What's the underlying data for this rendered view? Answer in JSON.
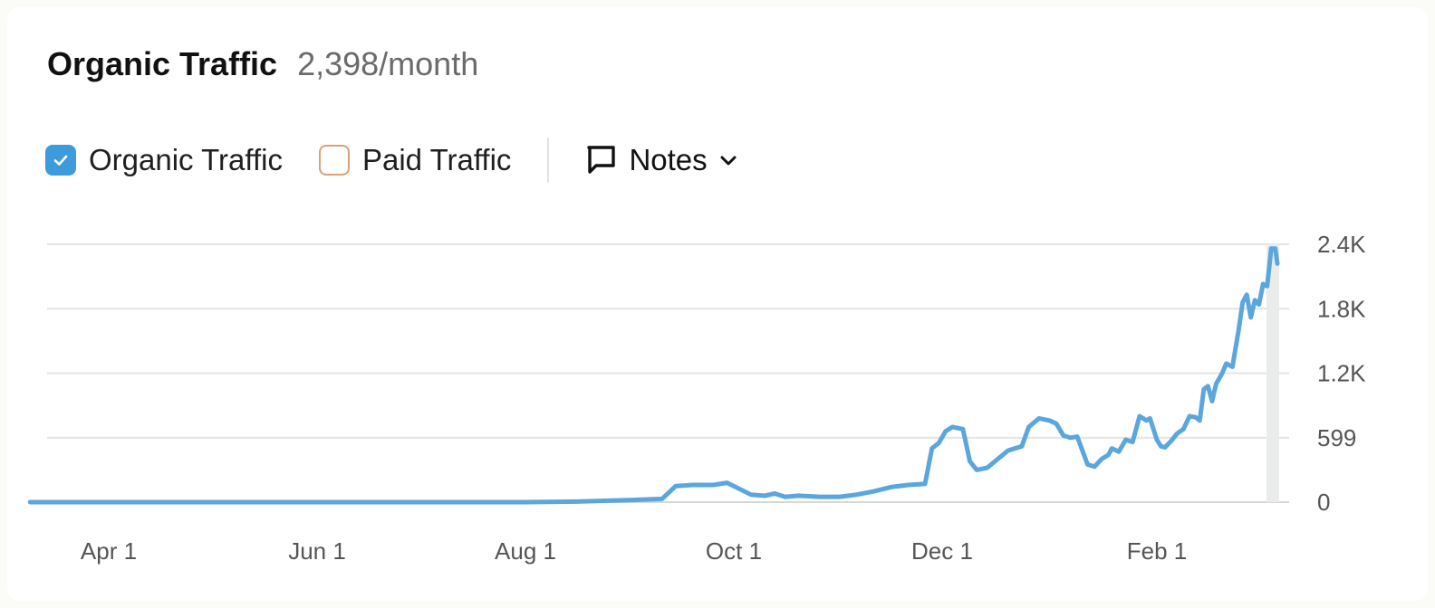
{
  "header": {
    "title": "Organic Traffic",
    "value": "2,398/month"
  },
  "legend": {
    "organic_label": "Organic Traffic",
    "organic_checked": true,
    "paid_label": "Paid Traffic",
    "paid_checked": false,
    "notes_label": "Notes",
    "icons": [
      "checkmark-icon",
      "speech-bubble-icon",
      "chevron-down-icon"
    ]
  },
  "colors": {
    "line": "#5aa6dd",
    "checked": "#3d9bdb",
    "paid_border": "#d8a27a",
    "grid": "#e4e4e4",
    "highlight_band": "#e9ecea"
  },
  "chart_data": {
    "type": "line",
    "title": "",
    "xlabel": "",
    "ylabel": "",
    "x_ticks": [
      {
        "label": "Apr 1",
        "date": "2023-04-01"
      },
      {
        "label": "Jun 1",
        "date": "2023-06-01"
      },
      {
        "label": "Aug 1",
        "date": "2023-08-01"
      },
      {
        "label": "Oct 1",
        "date": "2023-10-01"
      },
      {
        "label": "Dec 1",
        "date": "2023-12-01"
      },
      {
        "label": "Feb 1",
        "date": "2024-02-01"
      }
    ],
    "y_ticks": [
      {
        "label": "0",
        "value": 0
      },
      {
        "label": "599",
        "value": 599
      },
      {
        "label": "1.2K",
        "value": 1200
      },
      {
        "label": "1.8K",
        "value": 1800
      },
      {
        "label": "2.4K",
        "value": 2400
      }
    ],
    "ylim": [
      0,
      2400
    ],
    "y_axis_side": "right",
    "grid": true,
    "series": [
      {
        "name": "Organic Traffic",
        "points": [
          [
            "2023-03-09",
            0
          ],
          [
            "2023-04-01",
            0
          ],
          [
            "2023-05-01",
            0
          ],
          [
            "2023-06-01",
            0
          ],
          [
            "2023-07-01",
            0
          ],
          [
            "2023-08-01",
            0
          ],
          [
            "2023-08-16",
            5
          ],
          [
            "2023-09-01",
            20
          ],
          [
            "2023-09-10",
            30
          ],
          [
            "2023-09-14",
            150
          ],
          [
            "2023-09-19",
            160
          ],
          [
            "2023-09-25",
            160
          ],
          [
            "2023-09-29",
            180
          ],
          [
            "2023-10-01",
            150
          ],
          [
            "2023-10-06",
            70
          ],
          [
            "2023-10-10",
            60
          ],
          [
            "2023-10-13",
            80
          ],
          [
            "2023-10-16",
            50
          ],
          [
            "2023-10-20",
            60
          ],
          [
            "2023-10-26",
            50
          ],
          [
            "2023-11-01",
            50
          ],
          [
            "2023-11-06",
            70
          ],
          [
            "2023-11-11",
            100
          ],
          [
            "2023-11-16",
            140
          ],
          [
            "2023-11-21",
            160
          ],
          [
            "2023-11-26",
            170
          ],
          [
            "2023-11-28",
            500
          ],
          [
            "2023-11-30",
            550
          ],
          [
            "2023-12-02",
            660
          ],
          [
            "2023-12-04",
            700
          ],
          [
            "2023-12-07",
            680
          ],
          [
            "2023-12-09",
            380
          ],
          [
            "2023-12-11",
            300
          ],
          [
            "2023-12-14",
            320
          ],
          [
            "2023-12-17",
            400
          ],
          [
            "2023-12-20",
            480
          ],
          [
            "2023-12-24",
            520
          ],
          [
            "2023-12-26",
            700
          ],
          [
            "2023-12-29",
            780
          ],
          [
            "2024-01-01",
            760
          ],
          [
            "2024-01-03",
            730
          ],
          [
            "2024-01-05",
            620
          ],
          [
            "2024-01-07",
            600
          ],
          [
            "2024-01-09",
            610
          ],
          [
            "2024-01-12",
            350
          ],
          [
            "2024-01-14",
            330
          ],
          [
            "2024-01-16",
            400
          ],
          [
            "2024-01-18",
            440
          ],
          [
            "2024-01-19",
            500
          ],
          [
            "2024-01-21",
            470
          ],
          [
            "2024-01-23",
            580
          ],
          [
            "2024-01-25",
            560
          ],
          [
            "2024-01-27",
            800
          ],
          [
            "2024-01-29",
            760
          ],
          [
            "2024-01-30",
            780
          ],
          [
            "2024-02-01",
            580
          ],
          [
            "2024-02-03",
            520
          ],
          [
            "2024-02-05",
            510
          ],
          [
            "2024-02-08",
            570
          ],
          [
            "2024-02-11",
            640
          ],
          [
            "2024-02-14",
            680
          ],
          [
            "2024-02-17",
            800
          ],
          [
            "2024-02-20",
            790
          ],
          [
            "2024-02-22",
            760
          ],
          [
            "2024-02-24",
            1050
          ],
          [
            "2024-02-26",
            1080
          ],
          [
            "2024-02-28",
            940
          ],
          [
            "2024-03-01",
            1100
          ],
          [
            "2024-03-04",
            1200
          ],
          [
            "2024-03-06",
            1290
          ],
          [
            "2024-03-09",
            1260
          ],
          [
            "2024-03-12",
            1600
          ],
          [
            "2024-03-14",
            1860
          ],
          [
            "2024-03-16",
            1930
          ],
          [
            "2024-03-18",
            1720
          ],
          [
            "2024-03-20",
            1880
          ],
          [
            "2024-03-22",
            1840
          ],
          [
            "2024-03-24",
            2030
          ],
          [
            "2024-03-26",
            2010
          ],
          [
            "2024-03-28",
            2360
          ],
          [
            "2024-03-30",
            2360
          ],
          [
            "2024-03-31",
            2220
          ]
        ]
      }
    ]
  }
}
